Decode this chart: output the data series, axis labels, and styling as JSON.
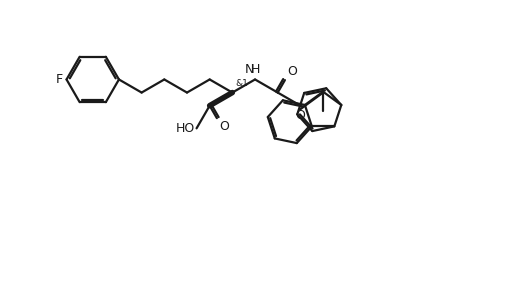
{
  "bg_color": "#ffffff",
  "line_color": "#1a1a1a",
  "line_width": 1.6,
  "fig_width": 5.28,
  "fig_height": 3.05,
  "dpi": 100,
  "xlim": [
    0,
    10
  ],
  "ylim": [
    0,
    6
  ]
}
